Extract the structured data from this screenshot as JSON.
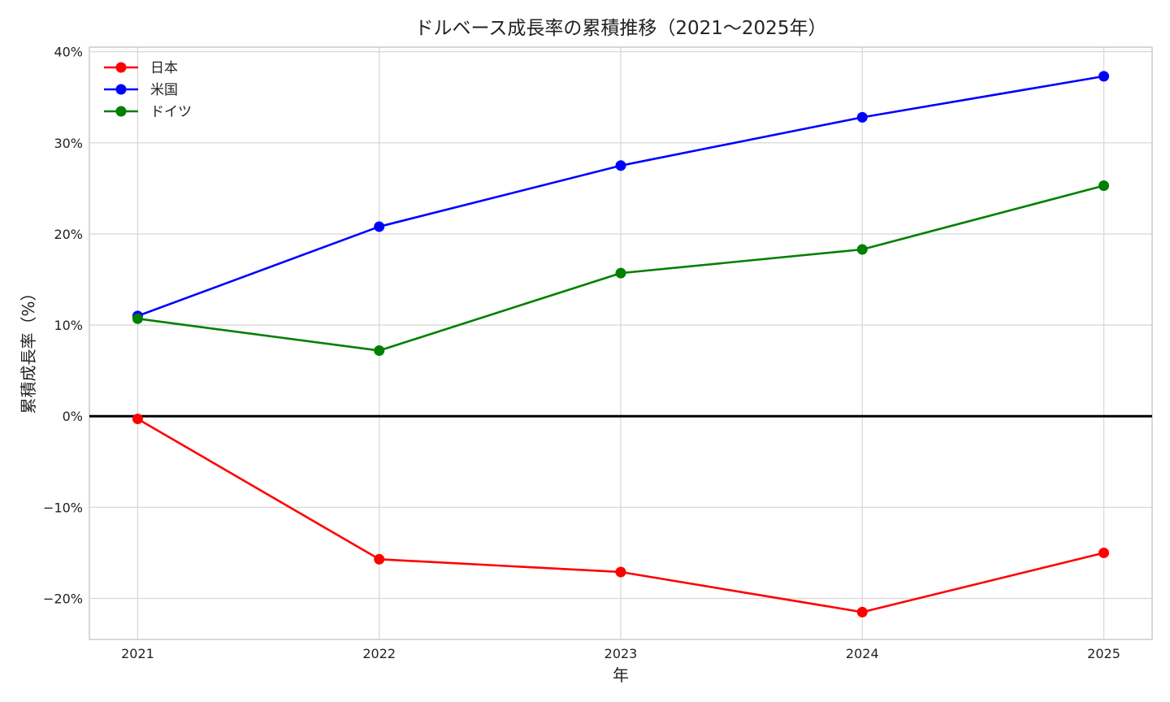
{
  "chart_data": {
    "type": "line",
    "title": "ドルベース成長率の累積推移（2021〜2025年）",
    "xlabel": "年",
    "ylabel": "累積成長率（%）",
    "x": [
      "2021",
      "2022",
      "2023",
      "2024",
      "2025"
    ],
    "xlim": [
      2020.8,
      2025.2
    ],
    "ylim": [
      -24.5,
      40.5
    ],
    "yticks": [
      -20,
      -10,
      0,
      10,
      20,
      30,
      40
    ],
    "ytick_labels": [
      "−20%",
      "−10%",
      "0%",
      "10%",
      "20%",
      "30%",
      "40%"
    ],
    "grid": true,
    "zero_line": true,
    "legend_position": "top-left",
    "series": [
      {
        "name": "日本",
        "color": "#ff0000",
        "values": [
          -0.3,
          -15.7,
          -17.1,
          -21.5,
          -15.0
        ]
      },
      {
        "name": "米国",
        "color": "#0000ff",
        "values": [
          11.0,
          20.8,
          27.5,
          32.8,
          37.3
        ]
      },
      {
        "name": "ドイツ",
        "color": "#008000",
        "values": [
          10.7,
          7.2,
          15.7,
          18.3,
          25.3
        ]
      }
    ]
  }
}
